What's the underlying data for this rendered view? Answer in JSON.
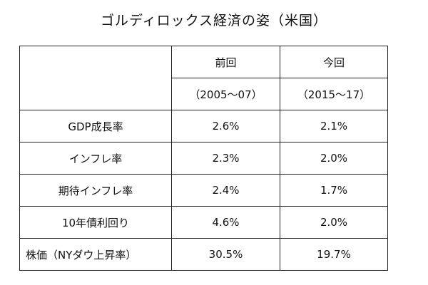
{
  "title": "ゴルディロックス経済の姿（米国）",
  "table": {
    "header_row1": [
      "前回",
      "今回"
    ],
    "header_row2": [
      "（2005〜07）",
      "（2015〜17）"
    ],
    "rows": [
      {
        "label": "GDP成長率",
        "previous": "2.6%",
        "current": "2.1%"
      },
      {
        "label": "インフレ率",
        "previous": "2.3%",
        "current": "2.0%"
      },
      {
        "label": "期待インフレ率",
        "previous": "2.4%",
        "current": "1.7%"
      },
      {
        "label": "10年債利回り",
        "previous": "4.6%",
        "current": "2.0%"
      },
      {
        "label": "株価（NYダウ上昇率）",
        "previous": "30.5%",
        "current": "19.7%"
      }
    ]
  }
}
